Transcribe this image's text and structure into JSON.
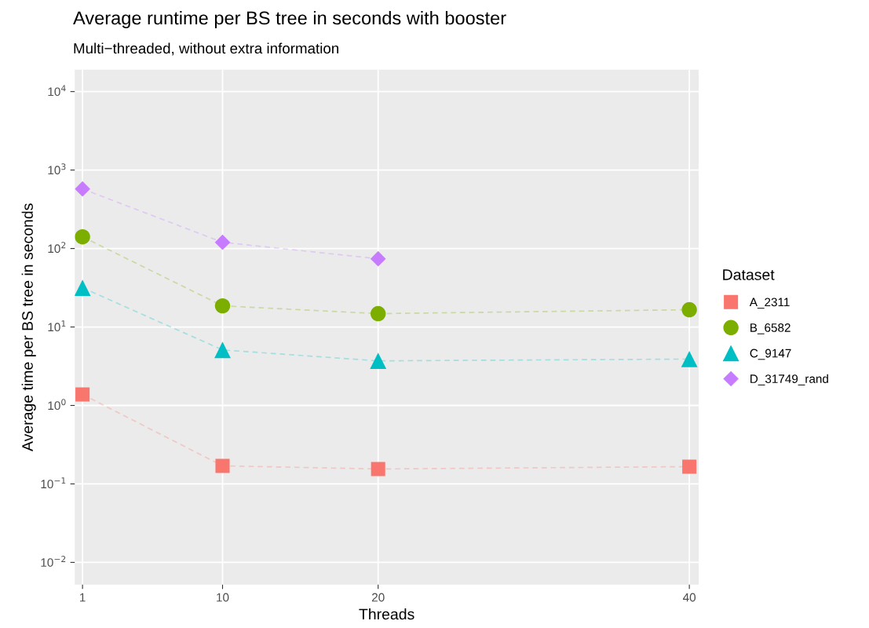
{
  "chart_data": {
    "type": "line",
    "title": "Average runtime per BS tree in seconds with booster",
    "subtitle": "Multi−threaded, without extra information",
    "xlabel": "Threads",
    "ylabel": "Average time per BS tree in seconds",
    "legend_title": "Dataset",
    "legend": "right",
    "grid": true,
    "log": "y",
    "line_style": "dashed",
    "x": [
      1,
      10,
      20,
      40
    ],
    "xlim": [
      0.5,
      40.6
    ],
    "xticks": [
      1,
      10,
      20,
      40
    ],
    "ylim": [
      0.0052,
      19000
    ],
    "yticks": [
      {
        "value": 0.01,
        "label": "10$^{−2}$"
      },
      {
        "value": 0.1,
        "label": "10$^{−1}$"
      },
      {
        "value": 1,
        "label": "10$^{0}$"
      },
      {
        "value": 10,
        "label": "10$^{1}$"
      },
      {
        "value": 100,
        "label": "10$^{2}$"
      },
      {
        "value": 1000,
        "label": "10$^{3}$"
      },
      {
        "value": 10000,
        "label": "10$^{4}$"
      }
    ],
    "series": [
      {
        "name": "A_2311",
        "color": "#f8766d",
        "marker": "square",
        "values": [
          1.38,
          0.17,
          0.155,
          0.166
        ]
      },
      {
        "name": "B_6582",
        "color": "#7cae00",
        "marker": "circle",
        "values": [
          141,
          18.6,
          14.8,
          16.6
        ]
      },
      {
        "name": "C_9147",
        "color": "#00bfc4",
        "marker": "triangle",
        "values": [
          31.6,
          5.1,
          3.7,
          3.9
        ]
      },
      {
        "name": "D_31749_rand",
        "color": "#c77cff",
        "marker": "diamond",
        "values": [
          575,
          120,
          74,
          null
        ]
      }
    ]
  }
}
